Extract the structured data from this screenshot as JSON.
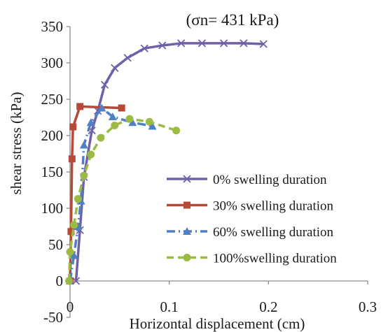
{
  "chart_data": {
    "type": "scatter",
    "title": "",
    "annotation": "(σn= 431 kPa)",
    "xlabel": "Horizontal displacement (cm)",
    "ylabel": "shear stress (kPa)",
    "xlim": [
      0,
      0.3
    ],
    "ylim": [
      -50,
      350
    ],
    "x_ticks": [
      0,
      0.1,
      0.2,
      0.3
    ],
    "x_tick_labels": [
      "0",
      "0.1",
      "0.2",
      "0.3"
    ],
    "y_ticks": [
      -50,
      0,
      50,
      100,
      150,
      200,
      250,
      300,
      350
    ],
    "y_tick_labels": [
      "-50",
      "0",
      "50",
      "100",
      "150",
      "200",
      "250",
      "300",
      "350"
    ],
    "grid": false,
    "legend_position": "bottom-right",
    "series": [
      {
        "name": "0% swelling duration",
        "color": "#7060a8",
        "marker": "x",
        "line": "solid",
        "points": [
          [
            0.006,
            0
          ],
          [
            0.01,
            70
          ],
          [
            0.014,
            143
          ],
          [
            0.022,
            207
          ],
          [
            0.028,
            234
          ],
          [
            0.035,
            270
          ],
          [
            0.045,
            293
          ],
          [
            0.058,
            307
          ],
          [
            0.075,
            320
          ],
          [
            0.093,
            324
          ],
          [
            0.112,
            327
          ],
          [
            0.133,
            327
          ],
          [
            0.155,
            327
          ],
          [
            0.175,
            327
          ],
          [
            0.195,
            326
          ]
        ]
      },
      {
        "name": "30% swelling duration",
        "color": "#b54a38",
        "marker": "square",
        "line": "solid",
        "points": [
          [
            0.0,
            0
          ],
          [
            0.001,
            68
          ],
          [
            0.002,
            168
          ],
          [
            0.003,
            212
          ],
          [
            0.01,
            240
          ],
          [
            0.052,
            238
          ]
        ]
      },
      {
        "name": "60% swelling duration",
        "color": "#4f7fc4",
        "marker": "triangle",
        "line": "dash-dot",
        "points": [
          [
            0.0,
            0
          ],
          [
            0.004,
            35
          ],
          [
            0.008,
            75
          ],
          [
            0.011,
            110
          ],
          [
            0.014,
            187
          ],
          [
            0.021,
            218
          ],
          [
            0.032,
            238
          ],
          [
            0.043,
            226
          ],
          [
            0.063,
            218
          ],
          [
            0.083,
            213
          ]
        ]
      },
      {
        "name": "100%swelling duration",
        "color": "#9bbb45",
        "marker": "circle",
        "line": "dashed",
        "points": [
          [
            -0.001,
            0
          ],
          [
            0.0,
            40
          ],
          [
            0.004,
            77
          ],
          [
            0.008,
            113
          ],
          [
            0.014,
            145
          ],
          [
            0.021,
            174
          ],
          [
            0.031,
            197
          ],
          [
            0.045,
            214
          ],
          [
            0.06,
            223
          ],
          [
            0.08,
            219
          ],
          [
            0.107,
            207
          ]
        ]
      }
    ]
  }
}
